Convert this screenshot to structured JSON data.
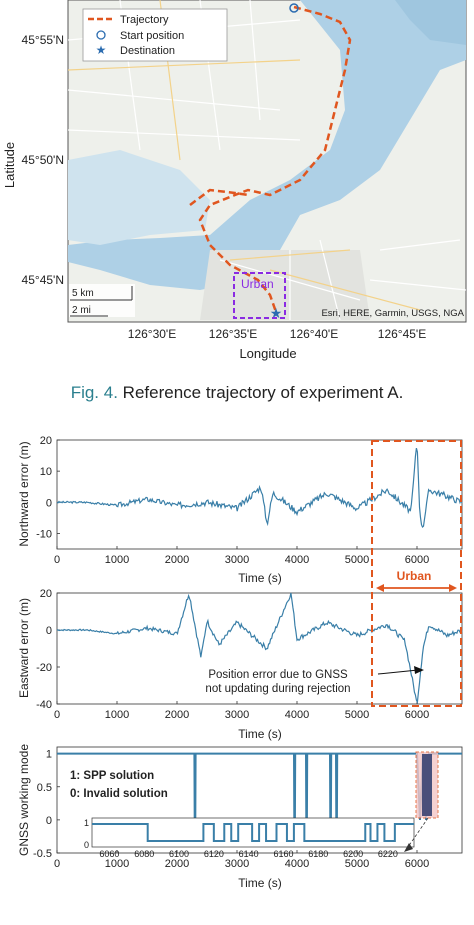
{
  "map": {
    "ylabel": "Latitude",
    "xlabel": "Longitude",
    "lat_ticks": [
      "45°55'N",
      "45°50'N",
      "45°45'N"
    ],
    "lon_ticks": [
      "126°30'E",
      "126°35'E",
      "126°40'E",
      "126°45'E"
    ],
    "legend": [
      "Trajectory",
      "Start position",
      "Destination"
    ],
    "scale_km": "5 km",
    "scale_mi": "2 mi",
    "urban_label": "Urban",
    "attribution": "Esri, HERE, Garmin, USGS, NGA",
    "colors": {
      "trajectory": "#e0561f",
      "markers": "#2b6cb0",
      "urban_box": "#8a2be2",
      "water": "#aed0e6",
      "land": "#eef0eb"
    }
  },
  "caption": {
    "fig": "Fig. 4.",
    "text": "Reference trajectory of experiment A."
  },
  "panel_north": {
    "ylabel": "Northward error (m)",
    "xlabel": "Time (s)",
    "yticks": [
      "20",
      "10",
      "0",
      "-10"
    ],
    "xticks": [
      "0",
      "1000",
      "2000",
      "3000",
      "4000",
      "5000",
      "6000"
    ]
  },
  "urban_marker": "Urban",
  "panel_east": {
    "ylabel": "Eastward error (m)",
    "xlabel": "Time (s)",
    "yticks": [
      "20",
      "0",
      "-20",
      "-40"
    ],
    "xticks": [
      "0",
      "1000",
      "2000",
      "3000",
      "4000",
      "5000",
      "6000"
    ],
    "annotation_1": "Position error due to GNSS",
    "annotation_2": "not updating during rejection"
  },
  "panel_mode": {
    "ylabel": "GNSS working mode",
    "xlabel": "Time (s)",
    "yticks": [
      "1",
      "0.5",
      "0",
      "-0.5"
    ],
    "xticks": [
      "0",
      "1000",
      "2000",
      "3000",
      "4000",
      "5000",
      "6000"
    ],
    "legend_1": "1: SPP solution",
    "legend_2": "0: Invalid solution",
    "inset_yticks": [
      "1",
      "0"
    ],
    "inset_xticks": [
      "6060",
      "6080",
      "6100",
      "6120",
      "6140",
      "6160",
      "6180",
      "6200",
      "6220"
    ]
  },
  "chart_data": [
    {
      "type": "line",
      "title": "",
      "xlabel": "Time (s)",
      "ylabel": "Northward error (m)",
      "xlim": [
        0,
        6750
      ],
      "ylim": [
        -15,
        20
      ],
      "grid": false,
      "series": [
        {
          "x": [
            0,
            500,
            1000,
            1500,
            2000,
            2500,
            3000,
            3400,
            3500,
            3600,
            4000,
            4500,
            5000,
            5500,
            5900,
            6000,
            6050,
            6100,
            6200,
            6500,
            6750
          ],
          "values": [
            0,
            0,
            -1,
            1,
            -1,
            0,
            -2,
            5,
            -7,
            3,
            -3,
            3,
            -2,
            4,
            -3,
            20,
            -5,
            -8,
            4,
            2,
            0
          ]
        }
      ]
    },
    {
      "type": "line",
      "title": "",
      "xlabel": "Time (s)",
      "ylabel": "Eastward error (m)",
      "xlim": [
        0,
        6750
      ],
      "ylim": [
        -40,
        20
      ],
      "grid": false,
      "series": [
        {
          "x": [
            0,
            500,
            1000,
            1500,
            2000,
            2200,
            2400,
            2500,
            2700,
            3000,
            3500,
            3900,
            4000,
            4500,
            5000,
            5500,
            5800,
            6000,
            6050,
            6100,
            6200,
            6500,
            6750
          ],
          "values": [
            0,
            0,
            -2,
            1,
            -2,
            20,
            -15,
            5,
            -8,
            4,
            -10,
            20,
            -5,
            4,
            -3,
            3,
            -6,
            -40,
            -25,
            -10,
            3,
            -3,
            0
          ]
        }
      ]
    },
    {
      "type": "line",
      "title": "",
      "xlabel": "Time (s)",
      "ylabel": "GNSS working mode",
      "xlim": [
        0,
        6750
      ],
      "ylim": [
        -0.5,
        1.1
      ],
      "grid": false,
      "series": [
        {
          "x": [
            0,
            2290,
            2295,
            2305,
            2310,
            3950,
            3955,
            3965,
            3970,
            4150,
            4155,
            4165,
            4170,
            4550,
            4555,
            4565,
            4570,
            4650,
            4655,
            4665,
            4670,
            6000,
            6050,
            6100,
            6150,
            6200,
            6750
          ],
          "values": [
            1,
            1,
            0,
            0,
            1,
            1,
            0,
            0,
            1,
            1,
            0,
            0,
            1,
            1,
            0,
            0,
            1,
            1,
            0,
            0,
            1,
            1,
            0,
            1,
            0,
            1,
            1
          ]
        }
      ]
    }
  ]
}
